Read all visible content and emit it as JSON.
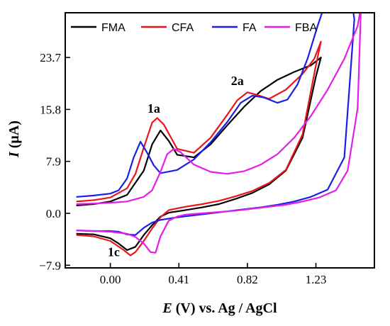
{
  "chart_data": {
    "type": "line",
    "xlabel_italic": "E",
    "xlabel_rest": " (V) vs. Ag / AgCl",
    "ylabel_italic": "I",
    "ylabel_rest": " (μA)",
    "xlim": [
      -0.27,
      1.58
    ],
    "ylim": [
      -8.3,
      30.5
    ],
    "x_ticks": [
      {
        "value": 0.0,
        "label": "0.00"
      },
      {
        "value": 0.41,
        "label": "0.41"
      },
      {
        "value": 0.82,
        "label": "0.82"
      },
      {
        "value": 1.23,
        "label": "1.23"
      }
    ],
    "y_ticks": [
      {
        "value": -7.9,
        "label": "−7.9"
      },
      {
        "value": 0.0,
        "label": "0.0"
      },
      {
        "value": 7.9,
        "label": "7.9"
      },
      {
        "value": 15.8,
        "label": "15.8"
      },
      {
        "value": 23.7,
        "label": "23.7"
      }
    ],
    "legend": {
      "position": "top",
      "entries": [
        "FMA",
        "CFA",
        "FA",
        "FBA"
      ]
    },
    "annotations": [
      {
        "text": "1a",
        "x": 0.26,
        "y": 15.3
      },
      {
        "text": "2a",
        "x": 0.76,
        "y": 19.5
      },
      {
        "text": "1c",
        "x": 0.02,
        "y": -6.5
      }
    ],
    "series": [
      {
        "name": "FMA",
        "color": "#000000",
        "x": [
          -0.2,
          -0.1,
          0.0,
          0.1,
          0.2,
          0.25,
          0.3,
          0.35,
          0.4,
          0.5,
          0.6,
          0.7,
          0.8,
          0.9,
          1.0,
          1.1,
          1.2,
          1.26,
          1.23,
          1.15,
          1.05,
          0.95,
          0.85,
          0.75,
          0.65,
          0.55,
          0.45,
          0.35,
          0.3,
          0.25,
          0.2,
          0.15,
          0.1,
          0.05,
          0.0,
          -0.1,
          -0.2
        ],
        "y": [
          1.2,
          1.4,
          1.8,
          2.8,
          6.5,
          10.5,
          12.6,
          11.0,
          8.9,
          8.5,
          10.5,
          13.4,
          16.2,
          18.6,
          20.3,
          21.5,
          22.5,
          23.7,
          20.8,
          11.5,
          6.5,
          4.4,
          3.1,
          2.2,
          1.4,
          0.9,
          0.5,
          0.1,
          -0.5,
          -1.8,
          -3.3,
          -5.1,
          -5.6,
          -4.6,
          -3.8,
          -3.2,
          -3.1
        ]
      },
      {
        "name": "CFA",
        "color": "#e8151b",
        "x": [
          -0.2,
          -0.1,
          0.0,
          0.1,
          0.15,
          0.2,
          0.25,
          0.28,
          0.32,
          0.4,
          0.5,
          0.6,
          0.7,
          0.76,
          0.82,
          0.88,
          0.95,
          1.05,
          1.15,
          1.22,
          1.26,
          1.23,
          1.15,
          1.05,
          0.95,
          0.85,
          0.75,
          0.65,
          0.55,
          0.45,
          0.35,
          0.3,
          0.25,
          0.2,
          0.15,
          0.12,
          0.08,
          0.0,
          -0.1,
          -0.2
        ],
        "y": [
          1.8,
          2.0,
          2.4,
          3.8,
          6.0,
          10.0,
          13.8,
          14.5,
          13.5,
          9.8,
          9.2,
          11.5,
          15.0,
          17.2,
          18.4,
          18.0,
          17.4,
          18.8,
          21.2,
          23.5,
          26.1,
          22.5,
          12.0,
          6.6,
          4.6,
          3.4,
          2.6,
          1.9,
          1.4,
          1.0,
          0.5,
          -0.6,
          -2.3,
          -4.2,
          -5.9,
          -6.4,
          -5.6,
          -4.2,
          -3.5,
          -3.3
        ]
      },
      {
        "name": "FA",
        "color": "#1a1ee6",
        "x": [
          -0.2,
          -0.1,
          0.0,
          0.05,
          0.1,
          0.14,
          0.18,
          0.22,
          0.26,
          0.3,
          0.4,
          0.5,
          0.6,
          0.7,
          0.78,
          0.85,
          0.92,
          1.0,
          1.06,
          1.12,
          1.18,
          1.24,
          1.28,
          1.38,
          1.44,
          1.46,
          1.4,
          1.3,
          1.2,
          1.1,
          1.0,
          0.9,
          0.8,
          0.7,
          0.6,
          0.5,
          0.4,
          0.3,
          0.25,
          0.2,
          0.15,
          0.1,
          0.05,
          0.0,
          -0.1,
          -0.2
        ],
        "y": [
          2.5,
          2.7,
          3.0,
          3.5,
          5.3,
          8.5,
          10.9,
          9.2,
          7.3,
          6.1,
          6.6,
          8.2,
          10.8,
          13.9,
          16.8,
          17.9,
          17.6,
          16.8,
          17.3,
          19.6,
          23.5,
          28.5,
          31.5,
          33,
          33,
          29.5,
          8.5,
          3.6,
          2.5,
          1.8,
          1.3,
          0.9,
          0.6,
          0.3,
          0.0,
          -0.3,
          -0.6,
          -1.0,
          -1.4,
          -2.2,
          -3.3,
          -3.2,
          -2.8,
          -2.7,
          -2.7,
          -2.6
        ]
      },
      {
        "name": "FBA",
        "color": "#e41de8",
        "x": [
          -0.2,
          -0.1,
          0.0,
          0.1,
          0.2,
          0.25,
          0.3,
          0.34,
          0.38,
          0.42,
          0.5,
          0.6,
          0.7,
          0.8,
          0.9,
          1.0,
          1.1,
          1.2,
          1.3,
          1.4,
          1.48,
          1.5,
          1.48,
          1.42,
          1.35,
          1.25,
          1.15,
          1.05,
          0.95,
          0.85,
          0.75,
          0.65,
          0.55,
          0.45,
          0.4,
          0.35,
          0.3,
          0.27,
          0.24,
          0.2,
          0.15,
          0.1,
          0.0,
          -0.1,
          -0.2
        ],
        "y": [
          1.4,
          1.5,
          1.6,
          1.8,
          2.5,
          3.5,
          6.3,
          9.0,
          9.8,
          9.3,
          7.4,
          6.3,
          6.0,
          6.4,
          7.4,
          9.0,
          11.5,
          14.8,
          18.8,
          23.5,
          28.5,
          31.5,
          16.0,
          6.5,
          3.5,
          2.4,
          1.8,
          1.3,
          1.0,
          0.7,
          0.4,
          0.2,
          0.0,
          -0.2,
          -0.5,
          -1.1,
          -3.5,
          -6.0,
          -5.9,
          -4.6,
          -3.6,
          -3.1,
          -2.8,
          -2.7,
          -2.6
        ]
      }
    ]
  }
}
